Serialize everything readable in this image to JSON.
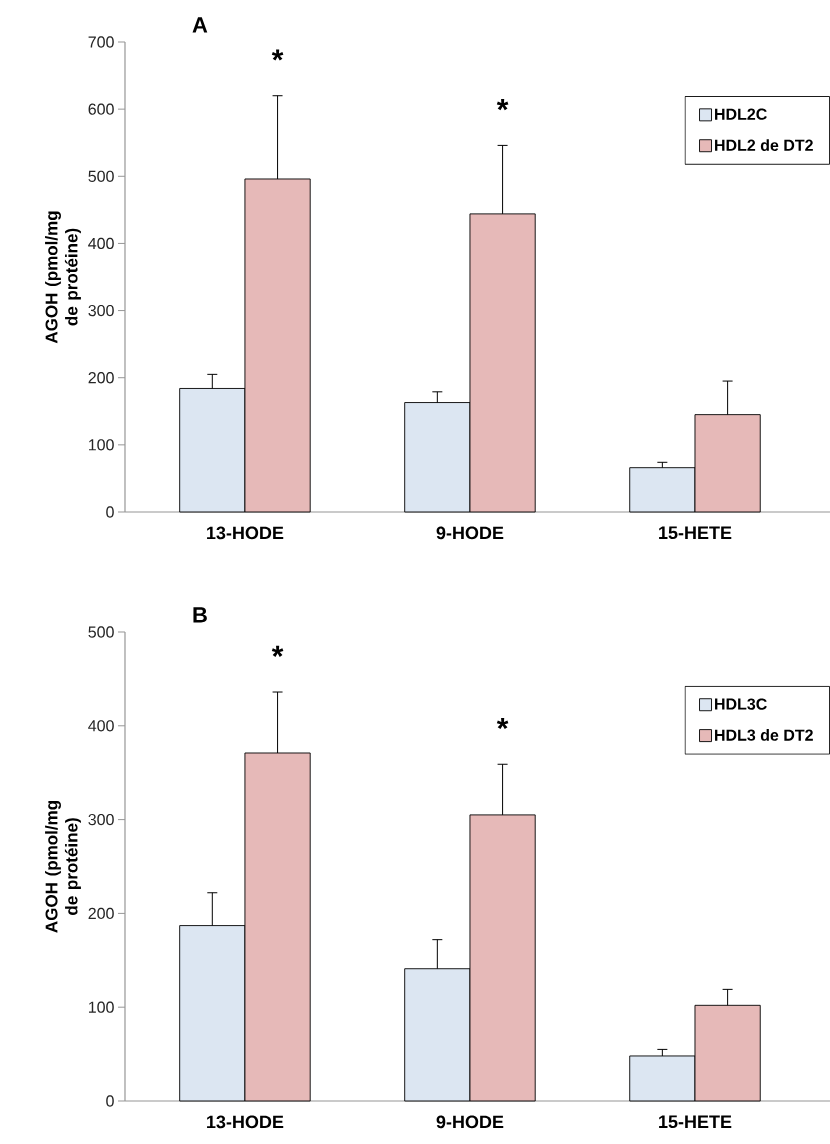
{
  "chart_data": [
    {
      "type": "bar",
      "title": "A",
      "categories": [
        "13-HODE",
        "9-HODE",
        "15-HETE"
      ],
      "ylabel": "AGOH (pmol/mg de protéine)",
      "ylim": [
        0,
        700
      ],
      "yticks": [
        0,
        100,
        200,
        300,
        400,
        500,
        600,
        700
      ],
      "legend": "top right",
      "series": [
        {
          "name": "HDL2C",
          "color": "#dce6f2",
          "values": [
            184,
            163,
            66
          ],
          "errors": [
            21,
            16,
            8
          ]
        },
        {
          "name": "HDL2 de DT2",
          "color": "#e6b9b8",
          "values": [
            496,
            444,
            145
          ],
          "errors": [
            124,
            102,
            50
          ]
        }
      ],
      "annotations": [
        "*",
        "*"
      ]
    },
    {
      "type": "bar",
      "title": "B",
      "categories": [
        "13-HODE",
        "9-HODE",
        "15-HETE"
      ],
      "ylabel": "AGOH (pmol/mg de protéine)",
      "ylim": [
        0,
        500
      ],
      "yticks": [
        0,
        100,
        200,
        300,
        400,
        500
      ],
      "legend": "top right",
      "series": [
        {
          "name": "HDL3C",
          "color": "#dce6f2",
          "values": [
            187,
            141,
            48
          ],
          "errors": [
            35,
            31,
            7
          ]
        },
        {
          "name": "HDL3 de DT2",
          "color": "#e6b9b8",
          "values": [
            371,
            305,
            102
          ],
          "errors": [
            65,
            54,
            17
          ]
        }
      ],
      "annotations": [
        "*",
        "*"
      ]
    }
  ]
}
